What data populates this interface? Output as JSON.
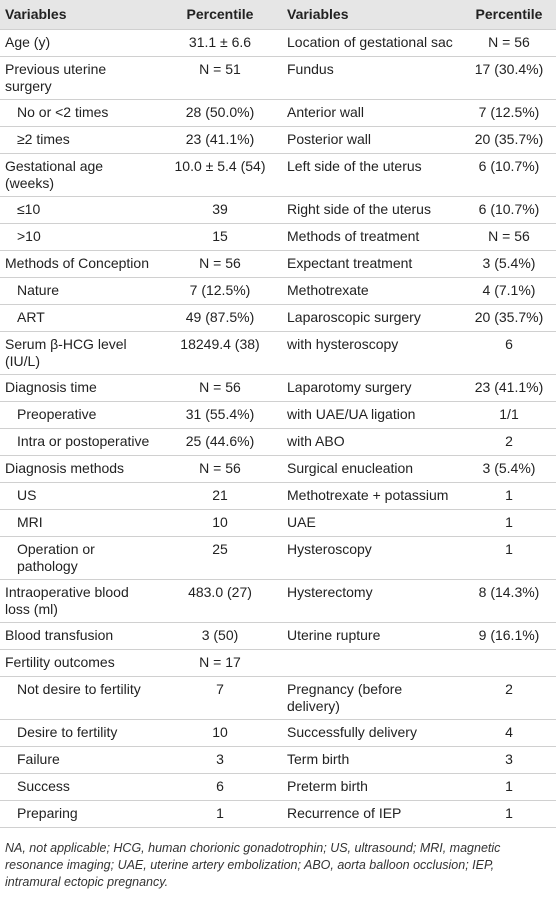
{
  "table": {
    "header": [
      "Variables",
      "Percentile",
      "Variables",
      "Percentile"
    ],
    "rows": [
      {
        "cells": [
          "Age (y)",
          "31.1 ± 6.6",
          "Location of gestational sac",
          "N = 56"
        ]
      },
      {
        "cells": [
          "Previous uterine surgery",
          "N = 51",
          "Fundus",
          "17 (30.4%)"
        ]
      },
      {
        "cells": [
          "No or <2 times",
          "28 (50.0%)",
          "Anterior wall",
          "7 (12.5%)"
        ],
        "indent": true
      },
      {
        "cells": [
          "≥2 times",
          "23 (41.1%)",
          "Posterior wall",
          "20 (35.7%)"
        ],
        "indent": true
      },
      {
        "cells": [
          "Gestational age (weeks)",
          "10.0 ± 5.4 (54)",
          "Left side of the uterus",
          "6 (10.7%)"
        ]
      },
      {
        "cells": [
          "≤10",
          "39",
          "Right side of the uterus",
          "6 (10.7%)"
        ],
        "indent": true
      },
      {
        "cells": [
          ">10",
          "15",
          "Methods of treatment",
          "N = 56"
        ],
        "indent": true
      },
      {
        "cells": [
          "Methods of Conception",
          "N = 56",
          "Expectant treatment",
          "3 (5.4%)"
        ]
      },
      {
        "cells": [
          "Nature",
          "7 (12.5%)",
          "Methotrexate",
          "4 (7.1%)"
        ],
        "indent": true
      },
      {
        "cells": [
          "ART",
          "49 (87.5%)",
          "Laparoscopic surgery",
          "20 (35.7%)"
        ],
        "indent": true
      },
      {
        "cells": [
          "Serum β-HCG level (IU/L)",
          "18249.4 (38)",
          "with hysteroscopy",
          "6"
        ]
      },
      {
        "cells": [
          "Diagnosis time",
          "N = 56",
          "Laparotomy surgery",
          "23 (41.1%)"
        ]
      },
      {
        "cells": [
          "Preoperative",
          "31 (55.4%)",
          "with UAE/UA ligation",
          "1/1"
        ],
        "indent": true
      },
      {
        "cells": [
          "Intra or postoperative",
          "25 (44.6%)",
          "with ABO",
          "2"
        ],
        "indent": true
      },
      {
        "cells": [
          "Diagnosis methods",
          "N = 56",
          "Surgical enucleation",
          "3 (5.4%)"
        ]
      },
      {
        "cells": [
          "US",
          "21",
          "Methotrexate + potassium",
          "1"
        ],
        "indent": true
      },
      {
        "cells": [
          "MRI",
          "10",
          "UAE",
          "1"
        ],
        "indent": true
      },
      {
        "cells": [
          "Operation or pathology",
          "25",
          "Hysteroscopy",
          "1"
        ],
        "indent": true
      },
      {
        "cells": [
          "Intraoperative blood loss (ml)",
          "483.0 (27)",
          "Hysterectomy",
          "8 (14.3%)"
        ]
      },
      {
        "cells": [
          "Blood transfusion",
          "3 (50)",
          "Uterine rupture",
          "9 (16.1%)"
        ]
      },
      {
        "cells": [
          "Fertility outcomes",
          "N = 17",
          null,
          null
        ]
      },
      {
        "cells": [
          "Not desire to fertility",
          "7",
          "Pregnancy (before delivery)",
          "2"
        ],
        "indent": true
      },
      {
        "cells": [
          "Desire to fertility",
          "10",
          "Successfully delivery",
          "4"
        ],
        "indent": true
      },
      {
        "cells": [
          "Failure",
          "3",
          "Term birth",
          "3"
        ],
        "indent": true
      },
      {
        "cells": [
          "Success",
          "6",
          "Preterm birth",
          "1"
        ],
        "indent": true
      },
      {
        "cells": [
          "Preparing",
          "1",
          "Recurrence of IEP",
          "1"
        ],
        "indent": true
      }
    ]
  },
  "footnote": "NA, not applicable; HCG, human chorionic gonadotrophin; US, ultrasound; MRI, magnetic resonance imaging; UAE, uterine artery embolization; ABO, aorta balloon occlusion; IEP, intramural ectopic pregnancy."
}
